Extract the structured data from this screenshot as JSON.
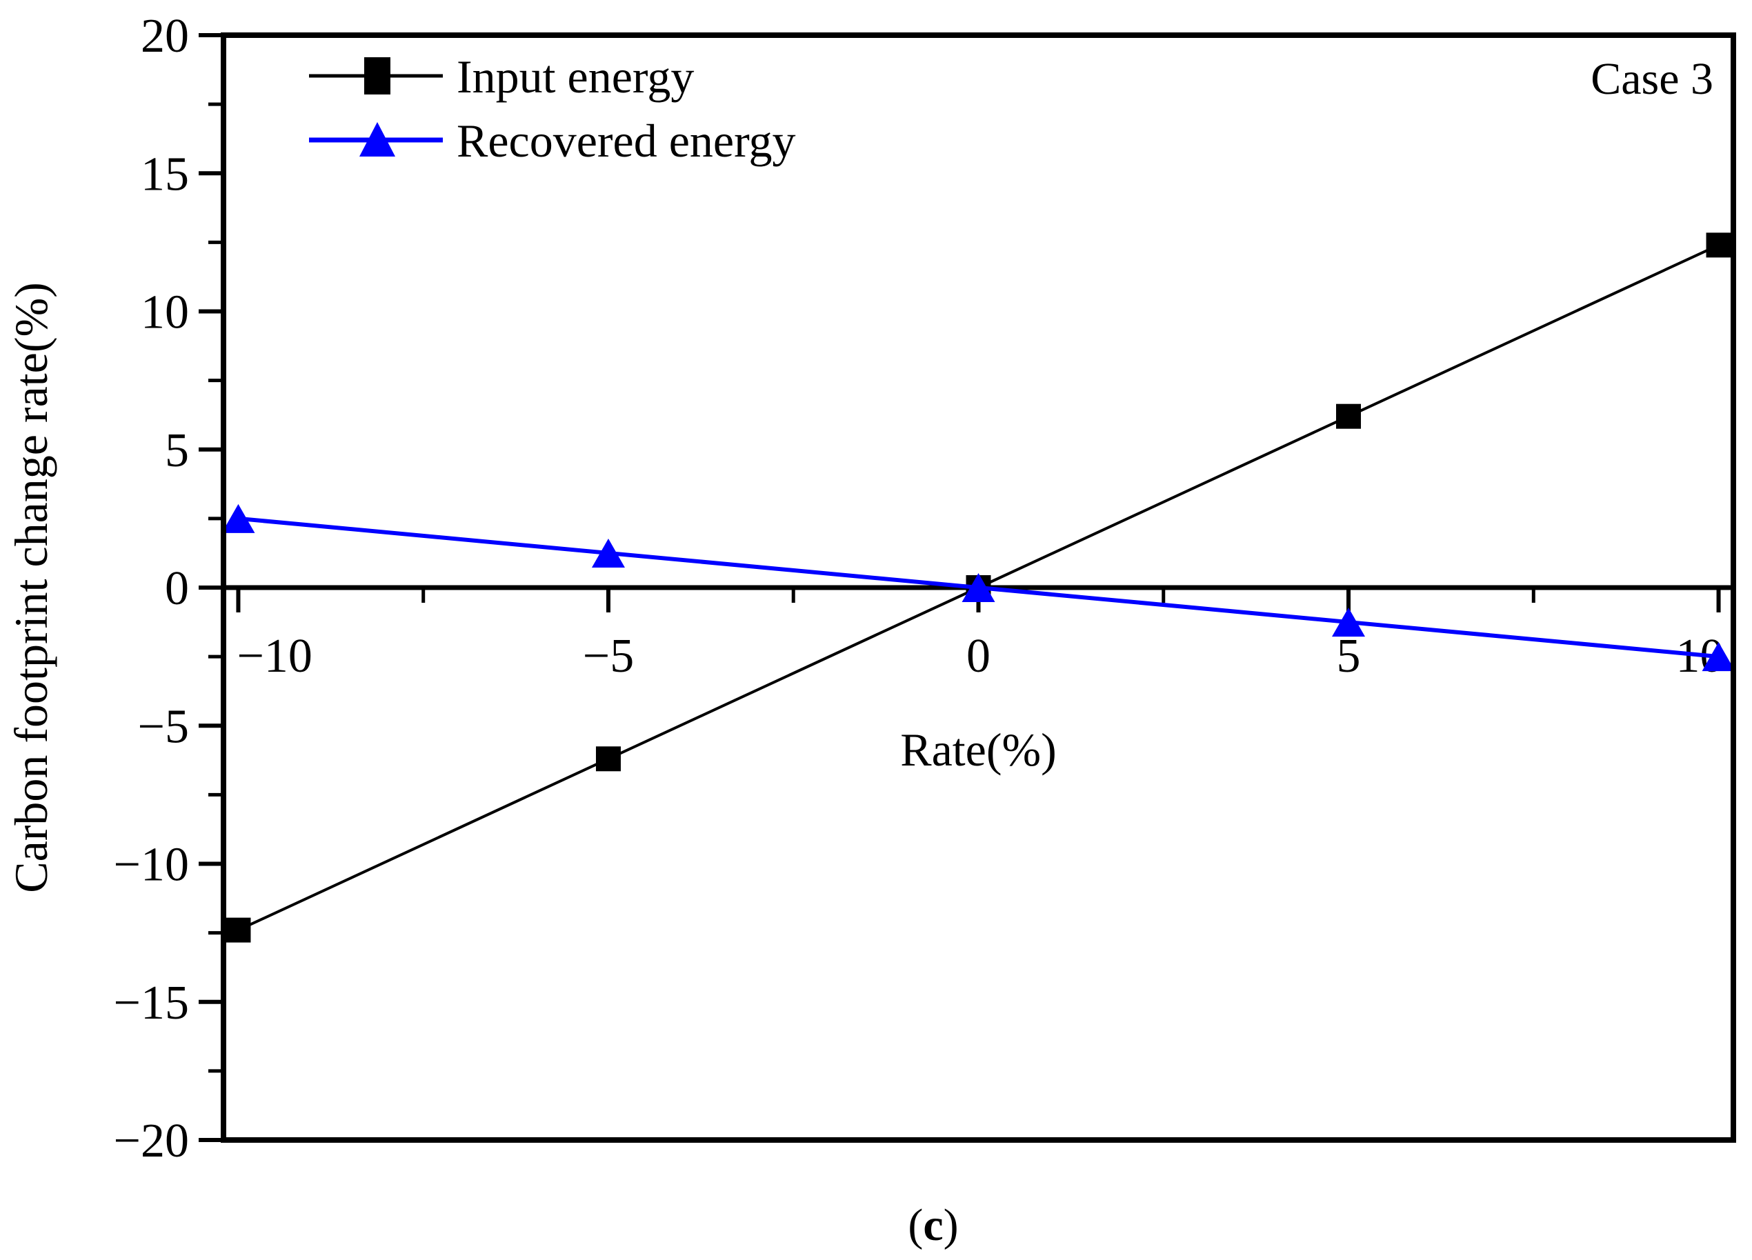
{
  "chart_data": {
    "type": "line",
    "annotation": "Case 3",
    "caption": "(c)",
    "xlabel": "Rate(%)",
    "ylabel": "Carbon footprint change rate(%)",
    "x": [
      -10,
      -5,
      0,
      5,
      10
    ],
    "series": [
      {
        "name": "Input energy",
        "color": "#000000",
        "marker": "square",
        "line_width": 4,
        "values": [
          -12.4,
          -6.2,
          0,
          6.2,
          12.4
        ]
      },
      {
        "name": "Recovered energy",
        "color": "#0000FF",
        "marker": "triangle",
        "line_width": 6,
        "values": [
          2.5,
          1.25,
          0,
          -1.25,
          -2.5
        ]
      }
    ],
    "xlim": [
      -10.2,
      10.2
    ],
    "ylim": [
      -20,
      20
    ],
    "x_major_ticks": [
      -10,
      -5,
      0,
      5,
      10
    ],
    "x_tick_labels": [
      "−10",
      "−5",
      "0",
      "5",
      "10"
    ],
    "x_minor_ticks": [
      -7.5,
      -2.5,
      2.5,
      7.5
    ],
    "y_major_ticks": [
      20,
      15,
      10,
      5,
      0,
      -5,
      -10,
      -15,
      -20
    ],
    "y_tick_labels": [
      "20",
      "15",
      "10",
      "5",
      "0",
      "−5",
      "−10",
      "−15",
      "−20"
    ],
    "y_minor_ticks": [
      17.5,
      12.5,
      7.5,
      2.5,
      -2.5,
      -7.5,
      -12.5,
      -17.5
    ],
    "grid": "off",
    "legend_position": "top-left-inside",
    "axis_color": "#000000",
    "background_color": "#ffffff"
  }
}
